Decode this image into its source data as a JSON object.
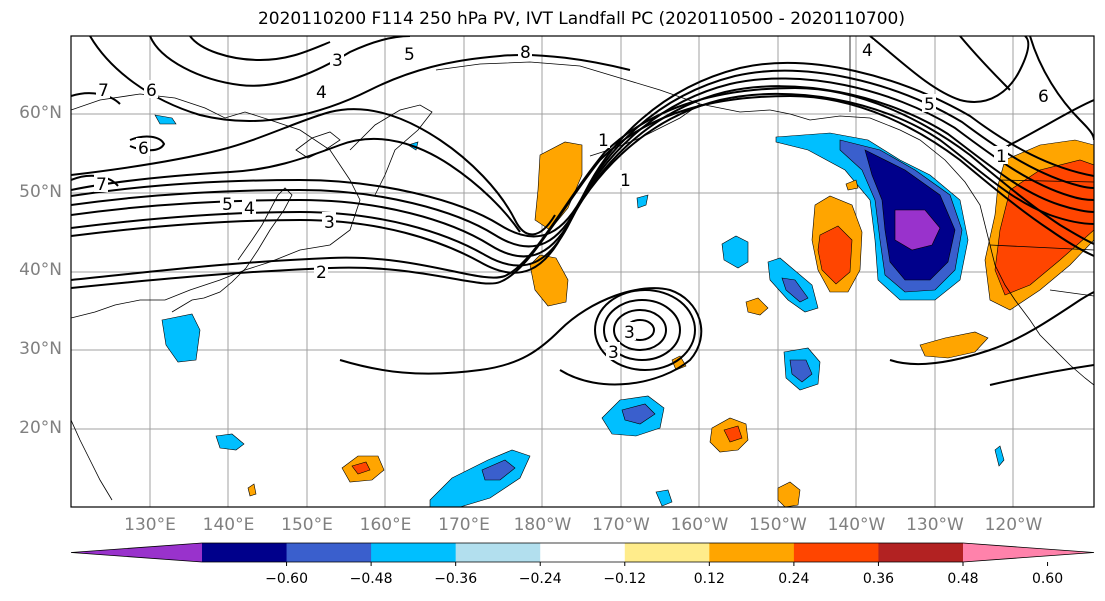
{
  "title": "2020110200 F114 250 hPa PV, IVT Landfall PC (2020110500 - 2020110700)",
  "lat_labels": [
    {
      "text": "60°N",
      "lat": 60
    },
    {
      "text": "50°N",
      "lat": 50
    },
    {
      "text": "40°N",
      "lat": 40
    },
    {
      "text": "30°N",
      "lat": 30
    },
    {
      "text": "20°N",
      "lat": 20
    }
  ],
  "lon_labels": [
    {
      "text": "130°E",
      "lon": 130
    },
    {
      "text": "140°E",
      "lon": 140
    },
    {
      "text": "150°E",
      "lon": 150
    },
    {
      "text": "160°E",
      "lon": 160
    },
    {
      "text": "170°E",
      "lon": 170
    },
    {
      "text": "180°W",
      "lon": 180
    },
    {
      "text": "170°W",
      "lon": 190
    },
    {
      "text": "160°W",
      "lon": 200
    },
    {
      "text": "150°W",
      "lon": 210
    },
    {
      "text": "140°W",
      "lon": 220
    },
    {
      "text": "130°W",
      "lon": 230
    },
    {
      "text": "120°W",
      "lon": 240
    }
  ],
  "contour_labels": [
    "3",
    "5",
    "8",
    "4",
    "7",
    "6",
    "6",
    "7",
    "5",
    "4",
    "3",
    "2",
    "1",
    "1",
    "3",
    "3",
    "4",
    "5",
    "6",
    "1"
  ],
  "colorbar": {
    "colors": [
      "#9932cc",
      "#00008b",
      "#3a5fcd",
      "#00bfff",
      "#b2dfee",
      "#ffffff",
      "#ffec8b",
      "#ffa500",
      "#ff4500",
      "#b22222",
      "#ff82ab"
    ],
    "tick_labels": [
      "−0.60",
      "−0.48",
      "−0.36",
      "−0.24",
      "−0.12",
      "0.12",
      "0.24",
      "0.36",
      "0.48",
      "0.60"
    ]
  }
}
